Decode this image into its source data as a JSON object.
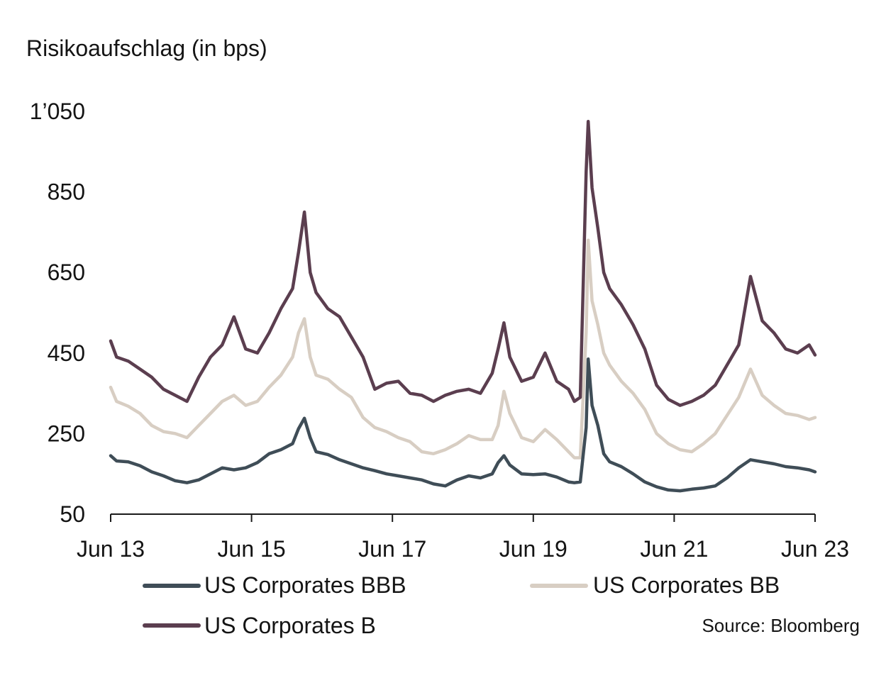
{
  "chart_data": {
    "type": "line",
    "title": "",
    "ylabel": "Risikoaufschlag (in bps)",
    "xlabel": "",
    "source": "Source: Bloomberg",
    "ylim": [
      50,
      1050
    ],
    "yticks": [
      50,
      250,
      450,
      650,
      850,
      1050
    ],
    "ytick_labels": [
      "50",
      "250",
      "450",
      "650",
      "850",
      "1’050"
    ],
    "xlim": [
      "2013-06",
      "2023-06"
    ],
    "xticks": [
      "2013-06",
      "2015-06",
      "2017-06",
      "2019-06",
      "2021-06",
      "2023-06"
    ],
    "xtick_labels": [
      "Jun 13",
      "Jun 15",
      "Jun 17",
      "Jun 19",
      "Jun 21",
      "Jun 23"
    ],
    "grid": false,
    "legend_placement": "bottom",
    "colors": {
      "US Corporates BBB": "#3f4d57",
      "US Corporates BB": "#d8cec3",
      "US Corporates B": "#5b3e4f"
    },
    "series": [
      {
        "name": "US Corporates BBB",
        "points": [
          [
            "2013-06",
            195
          ],
          [
            "2013-07",
            182
          ],
          [
            "2013-09",
            180
          ],
          [
            "2013-11",
            170
          ],
          [
            "2014-01",
            155
          ],
          [
            "2014-03",
            145
          ],
          [
            "2014-05",
            133
          ],
          [
            "2014-07",
            128
          ],
          [
            "2014-09",
            135
          ],
          [
            "2014-11",
            150
          ],
          [
            "2015-01",
            165
          ],
          [
            "2015-03",
            160
          ],
          [
            "2015-05",
            165
          ],
          [
            "2015-07",
            178
          ],
          [
            "2015-09",
            200
          ],
          [
            "2015-11",
            210
          ],
          [
            "2016-01",
            225
          ],
          [
            "2016-02",
            262
          ],
          [
            "2016-03",
            288
          ],
          [
            "2016-04",
            240
          ],
          [
            "2016-05",
            205
          ],
          [
            "2016-07",
            198
          ],
          [
            "2016-09",
            185
          ],
          [
            "2016-11",
            175
          ],
          [
            "2017-01",
            165
          ],
          [
            "2017-03",
            158
          ],
          [
            "2017-05",
            150
          ],
          [
            "2017-07",
            145
          ],
          [
            "2017-09",
            140
          ],
          [
            "2017-11",
            135
          ],
          [
            "2018-01",
            125
          ],
          [
            "2018-03",
            120
          ],
          [
            "2018-05",
            135
          ],
          [
            "2018-07",
            145
          ],
          [
            "2018-09",
            140
          ],
          [
            "2018-11",
            150
          ],
          [
            "2018-12",
            178
          ],
          [
            "2019-01",
            195
          ],
          [
            "2019-02",
            172
          ],
          [
            "2019-04",
            150
          ],
          [
            "2019-06",
            148
          ],
          [
            "2019-08",
            150
          ],
          [
            "2019-10",
            142
          ],
          [
            "2019-12",
            130
          ],
          [
            "2020-01",
            128
          ],
          [
            "2020-02",
            130
          ],
          [
            "2020-03",
            265
          ],
          [
            "2020-03",
            435
          ],
          [
            "2020-04",
            320
          ],
          [
            "2020-05",
            270
          ],
          [
            "2020-06",
            200
          ],
          [
            "2020-07",
            180
          ],
          [
            "2020-09",
            168
          ],
          [
            "2020-11",
            150
          ],
          [
            "2021-01",
            130
          ],
          [
            "2021-03",
            118
          ],
          [
            "2021-05",
            110
          ],
          [
            "2021-07",
            108
          ],
          [
            "2021-09",
            112
          ],
          [
            "2021-11",
            115
          ],
          [
            "2022-01",
            120
          ],
          [
            "2022-03",
            140
          ],
          [
            "2022-05",
            165
          ],
          [
            "2022-07",
            185
          ],
          [
            "2022-09",
            180
          ],
          [
            "2022-11",
            175
          ],
          [
            "2023-01",
            168
          ],
          [
            "2023-03",
            165
          ],
          [
            "2023-05",
            160
          ],
          [
            "2023-06",
            155
          ]
        ]
      },
      {
        "name": "US Corporates BB",
        "points": [
          [
            "2013-06",
            365
          ],
          [
            "2013-07",
            330
          ],
          [
            "2013-09",
            318
          ],
          [
            "2013-11",
            300
          ],
          [
            "2014-01",
            270
          ],
          [
            "2014-03",
            255
          ],
          [
            "2014-05",
            250
          ],
          [
            "2014-07",
            240
          ],
          [
            "2014-09",
            270
          ],
          [
            "2014-11",
            300
          ],
          [
            "2015-01",
            330
          ],
          [
            "2015-03",
            345
          ],
          [
            "2015-05",
            320
          ],
          [
            "2015-07",
            330
          ],
          [
            "2015-09",
            365
          ],
          [
            "2015-11",
            395
          ],
          [
            "2016-01",
            440
          ],
          [
            "2016-02",
            500
          ],
          [
            "2016-03",
            535
          ],
          [
            "2016-04",
            440
          ],
          [
            "2016-05",
            395
          ],
          [
            "2016-07",
            385
          ],
          [
            "2016-09",
            360
          ],
          [
            "2016-11",
            340
          ],
          [
            "2017-01",
            290
          ],
          [
            "2017-03",
            265
          ],
          [
            "2017-05",
            255
          ],
          [
            "2017-07",
            240
          ],
          [
            "2017-09",
            230
          ],
          [
            "2017-11",
            205
          ],
          [
            "2018-01",
            200
          ],
          [
            "2018-03",
            210
          ],
          [
            "2018-05",
            225
          ],
          [
            "2018-07",
            245
          ],
          [
            "2018-09",
            235
          ],
          [
            "2018-11",
            235
          ],
          [
            "2018-12",
            270
          ],
          [
            "2019-01",
            355
          ],
          [
            "2019-02",
            300
          ],
          [
            "2019-04",
            240
          ],
          [
            "2019-06",
            230
          ],
          [
            "2019-08",
            260
          ],
          [
            "2019-10",
            235
          ],
          [
            "2019-12",
            205
          ],
          [
            "2020-01",
            190
          ],
          [
            "2020-02",
            190
          ],
          [
            "2020-03",
            500
          ],
          [
            "2020-03",
            730
          ],
          [
            "2020-04",
            580
          ],
          [
            "2020-05",
            520
          ],
          [
            "2020-06",
            450
          ],
          [
            "2020-07",
            420
          ],
          [
            "2020-09",
            380
          ],
          [
            "2020-11",
            350
          ],
          [
            "2021-01",
            310
          ],
          [
            "2021-03",
            250
          ],
          [
            "2021-05",
            225
          ],
          [
            "2021-07",
            210
          ],
          [
            "2021-09",
            205
          ],
          [
            "2021-11",
            225
          ],
          [
            "2022-01",
            250
          ],
          [
            "2022-03",
            295
          ],
          [
            "2022-05",
            340
          ],
          [
            "2022-07",
            410
          ],
          [
            "2022-09",
            345
          ],
          [
            "2022-11",
            320
          ],
          [
            "2023-01",
            300
          ],
          [
            "2023-03",
            295
          ],
          [
            "2023-05",
            285
          ],
          [
            "2023-06",
            290
          ]
        ]
      },
      {
        "name": "US Corporates B",
        "points": [
          [
            "2013-06",
            480
          ],
          [
            "2013-07",
            440
          ],
          [
            "2013-09",
            430
          ],
          [
            "2013-11",
            410
          ],
          [
            "2014-01",
            390
          ],
          [
            "2014-03",
            360
          ],
          [
            "2014-05",
            345
          ],
          [
            "2014-07",
            330
          ],
          [
            "2014-09",
            390
          ],
          [
            "2014-11",
            440
          ],
          [
            "2015-01",
            470
          ],
          [
            "2015-03",
            540
          ],
          [
            "2015-05",
            460
          ],
          [
            "2015-07",
            450
          ],
          [
            "2015-09",
            500
          ],
          [
            "2015-11",
            560
          ],
          [
            "2016-01",
            610
          ],
          [
            "2016-02",
            700
          ],
          [
            "2016-03",
            800
          ],
          [
            "2016-04",
            650
          ],
          [
            "2016-05",
            600
          ],
          [
            "2016-07",
            560
          ],
          [
            "2016-09",
            540
          ],
          [
            "2016-11",
            490
          ],
          [
            "2017-01",
            440
          ],
          [
            "2017-03",
            360
          ],
          [
            "2017-05",
            375
          ],
          [
            "2017-07",
            380
          ],
          [
            "2017-09",
            350
          ],
          [
            "2017-11",
            345
          ],
          [
            "2018-01",
            330
          ],
          [
            "2018-03",
            345
          ],
          [
            "2018-05",
            355
          ],
          [
            "2018-07",
            360
          ],
          [
            "2018-09",
            350
          ],
          [
            "2018-11",
            400
          ],
          [
            "2018-12",
            460
          ],
          [
            "2019-01",
            525
          ],
          [
            "2019-02",
            440
          ],
          [
            "2019-04",
            380
          ],
          [
            "2019-06",
            390
          ],
          [
            "2019-08",
            450
          ],
          [
            "2019-10",
            380
          ],
          [
            "2019-12",
            360
          ],
          [
            "2020-01",
            330
          ],
          [
            "2020-02",
            340
          ],
          [
            "2020-03",
            900
          ],
          [
            "2020-03",
            1025
          ],
          [
            "2020-04",
            860
          ],
          [
            "2020-05",
            760
          ],
          [
            "2020-06",
            650
          ],
          [
            "2020-07",
            610
          ],
          [
            "2020-09",
            570
          ],
          [
            "2020-11",
            520
          ],
          [
            "2021-01",
            460
          ],
          [
            "2021-03",
            370
          ],
          [
            "2021-05",
            335
          ],
          [
            "2021-07",
            320
          ],
          [
            "2021-09",
            330
          ],
          [
            "2021-11",
            345
          ],
          [
            "2022-01",
            370
          ],
          [
            "2022-03",
            420
          ],
          [
            "2022-05",
            470
          ],
          [
            "2022-07",
            640
          ],
          [
            "2022-09",
            530
          ],
          [
            "2022-11",
            500
          ],
          [
            "2023-01",
            460
          ],
          [
            "2023-03",
            450
          ],
          [
            "2023-05",
            470
          ],
          [
            "2023-06",
            445
          ]
        ]
      }
    ]
  }
}
